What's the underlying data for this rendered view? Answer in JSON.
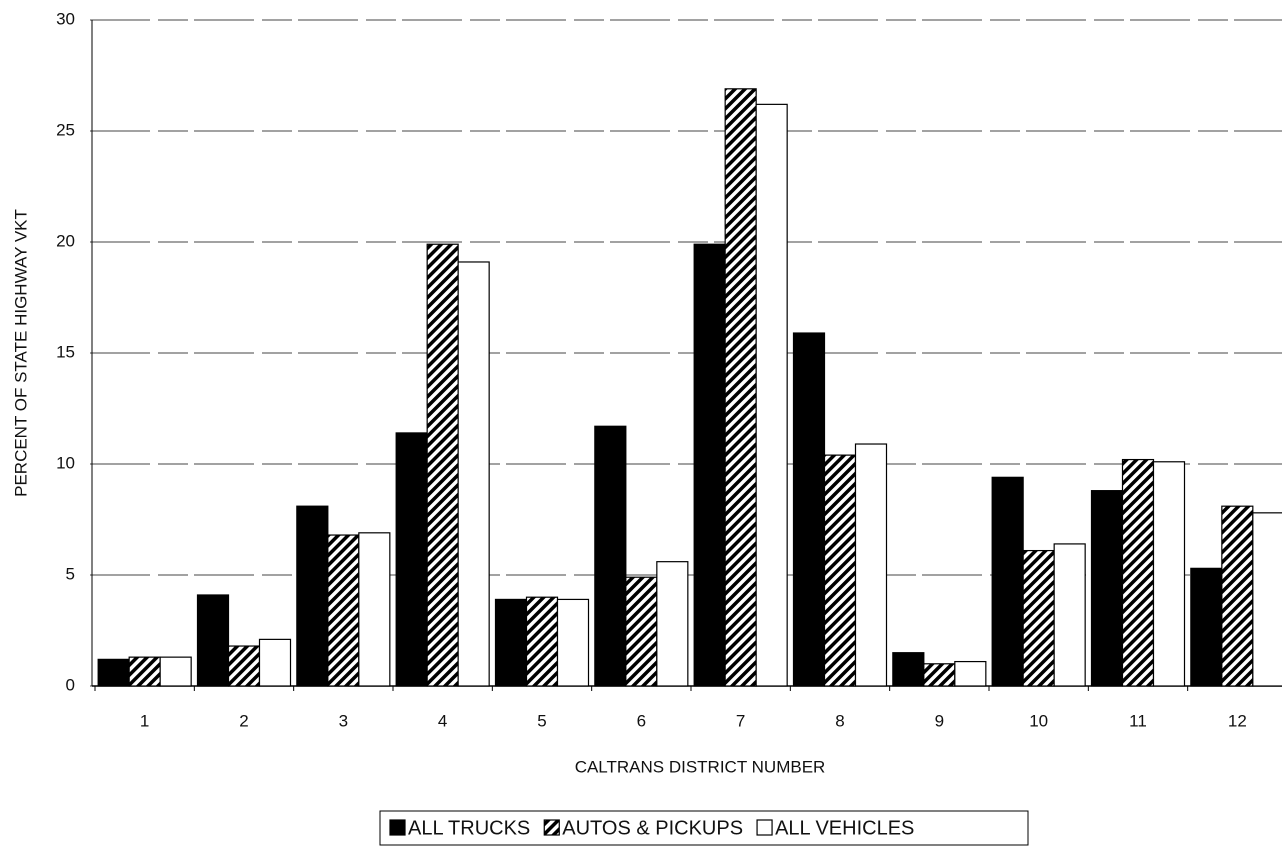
{
  "chart_data": {
    "type": "bar",
    "xlabel": "CALTRANS DISTRICT NUMBER",
    "ylabel": "PERCENT OF STATE HIGHWAY VKT",
    "categories": [
      "1",
      "2",
      "3",
      "4",
      "5",
      "6",
      "7",
      "8",
      "9",
      "10",
      "11",
      "12"
    ],
    "series": [
      {
        "name": "ALL TRUCKS",
        "color": "#000000",
        "values": [
          1.2,
          4.1,
          8.1,
          11.4,
          3.9,
          11.7,
          19.9,
          15.9,
          1.5,
          9.4,
          8.8,
          5.3
        ]
      },
      {
        "name": "AUTOS & PICKUPS",
        "color": "#000000",
        "hatch": true,
        "values": [
          1.3,
          1.8,
          6.8,
          19.9,
          4.0,
          4.9,
          26.9,
          10.4,
          1.0,
          6.1,
          10.2,
          8.1
        ]
      },
      {
        "name": "ALL VEHICLES",
        "color": "#ffffff",
        "values": [
          1.3,
          2.1,
          6.9,
          19.1,
          3.9,
          5.6,
          26.2,
          10.9,
          1.1,
          6.4,
          10.1,
          7.8
        ]
      }
    ],
    "ylim": [
      0,
      30
    ],
    "yticks": [
      0,
      5,
      10,
      15,
      20,
      25,
      30
    ],
    "grid": true,
    "legend": "bottom"
  }
}
